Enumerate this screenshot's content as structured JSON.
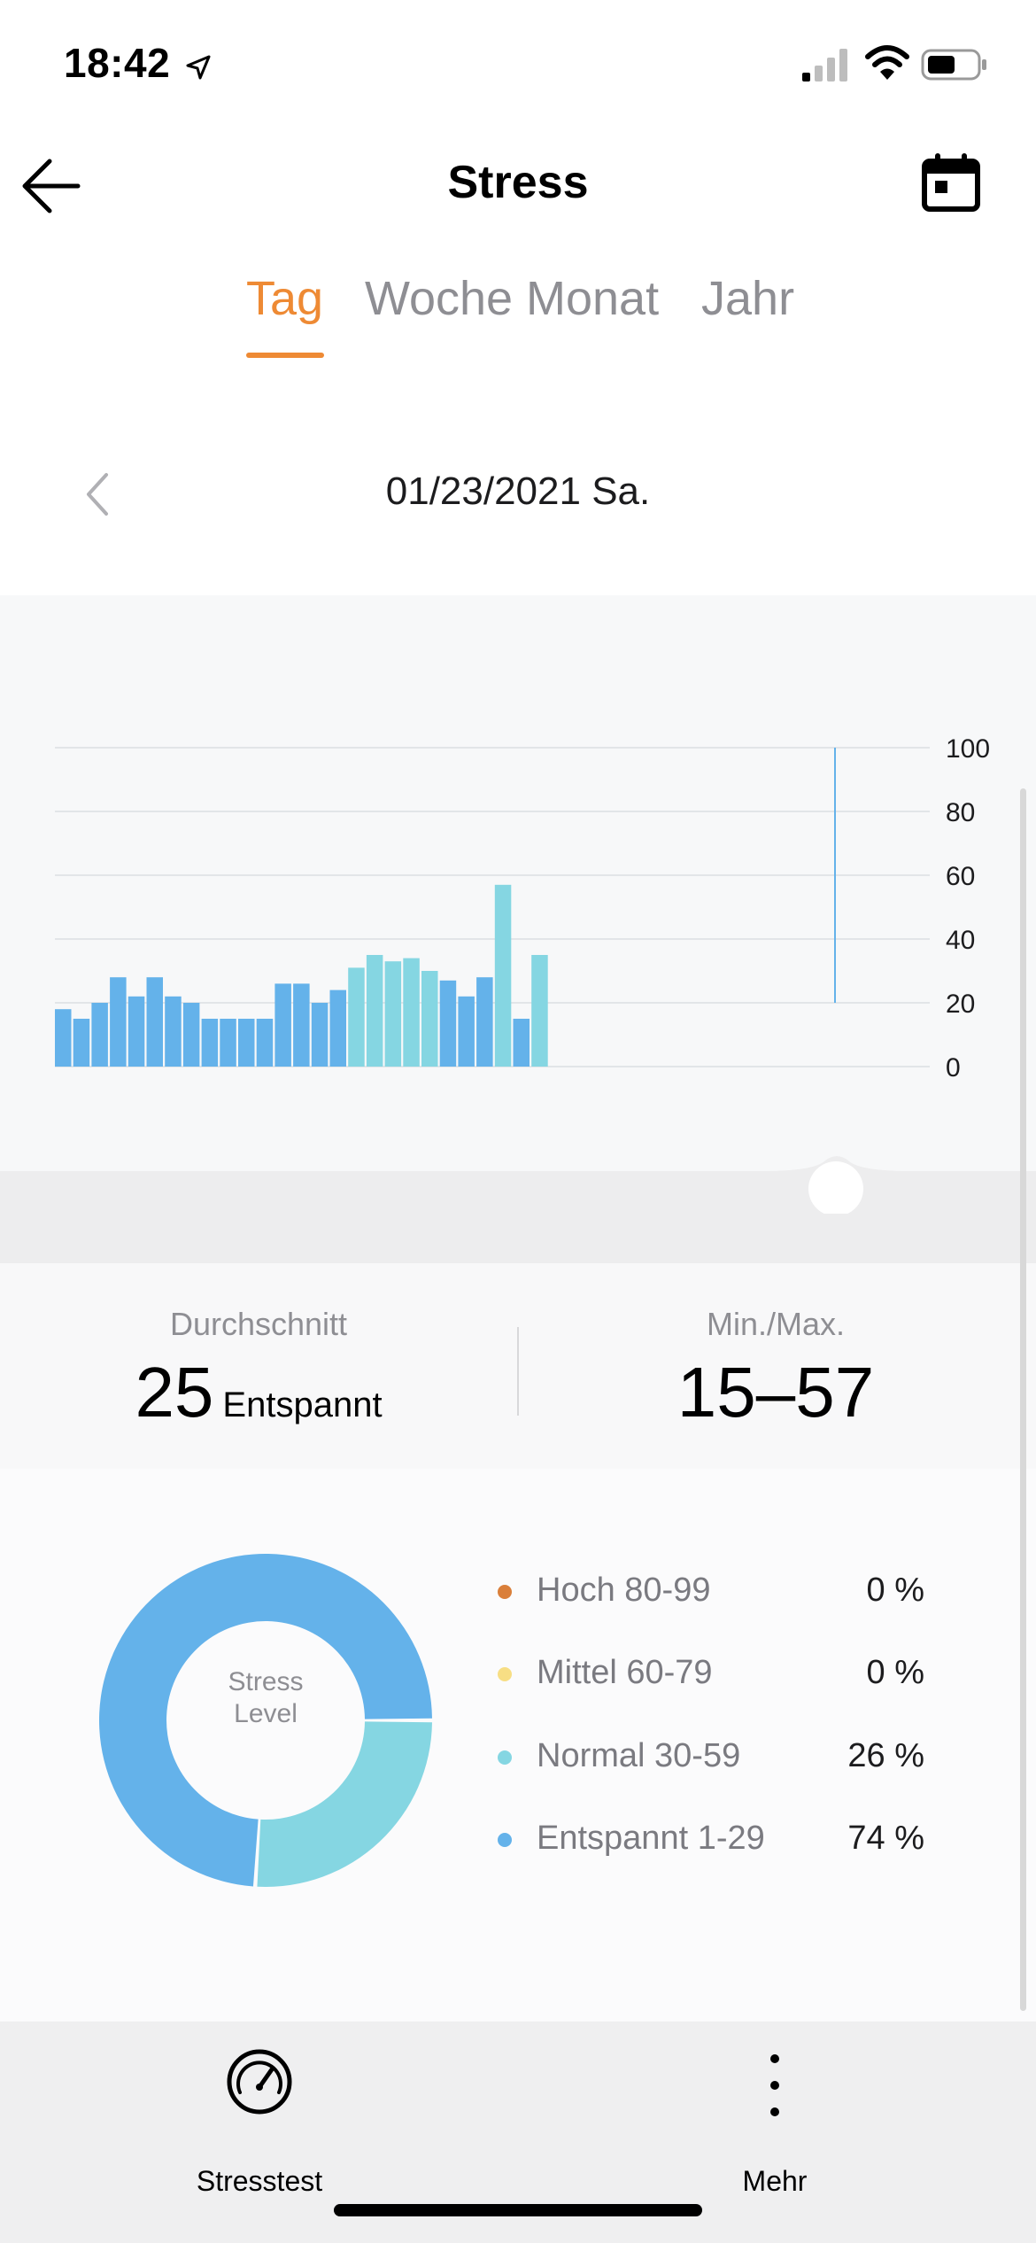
{
  "status_bar": {
    "time": "18:42"
  },
  "header": {
    "title": "Stress"
  },
  "tabs": [
    {
      "label": "Tag",
      "active": true
    },
    {
      "label": "Woche",
      "active": false
    },
    {
      "label": "Monat",
      "active": false
    },
    {
      "label": "Jahr",
      "active": false
    }
  ],
  "date": {
    "label": "01/23/2021 Sa."
  },
  "colors": {
    "accent": "#ee8a34",
    "entspannt": "#64b2ea",
    "normal": "#85d6e2",
    "mittel": "#f7de84",
    "hoch": "#da7f3a",
    "grid": "#e2e5e8"
  },
  "chart_data": {
    "type": "bar",
    "y_ticks": [
      "100",
      "80",
      "60",
      "40",
      "20",
      "0"
    ],
    "ylim": [
      0,
      100
    ],
    "values": [
      18,
      15,
      20,
      28,
      22,
      28,
      22,
      20,
      15,
      15,
      15,
      15,
      26,
      26,
      20,
      24,
      31,
      35,
      33,
      34,
      30,
      27,
      22,
      28,
      57,
      15,
      35
    ],
    "categories_by_level": [
      "E",
      "E",
      "E",
      "E",
      "E",
      "E",
      "E",
      "E",
      "E",
      "E",
      "E",
      "E",
      "E",
      "E",
      "E",
      "E",
      "N",
      "N",
      "N",
      "N",
      "N",
      "E",
      "E",
      "E",
      "N",
      "E",
      "N"
    ],
    "cursor_range": [
      20,
      100
    ]
  },
  "stats": {
    "average_label": "Durchschnitt",
    "average_value": "25",
    "average_word": "Entspannt",
    "minmax_label": "Min./Max.",
    "minmax_value": "15–57"
  },
  "donut": {
    "center_label": "Stress Level",
    "segments": [
      {
        "name": "Entspannt",
        "percent": 74
      },
      {
        "name": "Normal",
        "percent": 26
      }
    ],
    "legend": [
      {
        "label": "Hoch 80-99",
        "value": "0 %",
        "color": "#da7f3a"
      },
      {
        "label": "Mittel 60-79",
        "value": "0 %",
        "color": "#f7de84"
      },
      {
        "label": "Normal 30-59",
        "value": "26 %",
        "color": "#85d6e2"
      },
      {
        "label": "Entspannt 1-29",
        "value": "74 %",
        "color": "#64b2ea"
      }
    ]
  },
  "bottom_bar": {
    "stress_test_label": "Stresstest",
    "more_label": "Mehr"
  }
}
